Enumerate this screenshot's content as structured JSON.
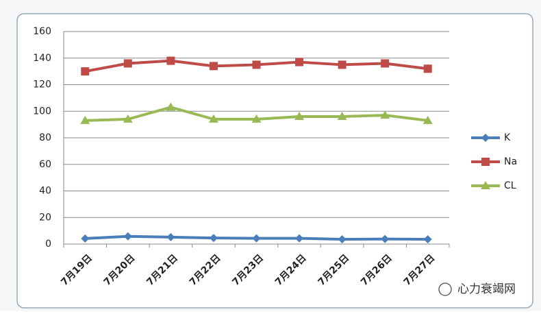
{
  "chart_data": {
    "type": "line",
    "categories": [
      "7月19日",
      "7月20日",
      "7月21日",
      "7月22日",
      "7月23日",
      "7月24日",
      "7月25日",
      "7月26日",
      "7月27日"
    ],
    "series": [
      {
        "name": "K",
        "color": "#4a7ebb",
        "marker": "diamond",
        "values": [
          4.2,
          5.8,
          5.2,
          4.6,
          4.3,
          4.3,
          3.6,
          3.8,
          3.6
        ]
      },
      {
        "name": "Na",
        "color": "#be4b48",
        "marker": "square",
        "values": [
          130,
          136,
          138,
          134,
          135,
          137,
          135,
          136,
          132
        ]
      },
      {
        "name": "CL",
        "color": "#98b954",
        "marker": "triangle",
        "values": [
          93,
          94,
          103,
          94,
          94,
          96,
          96,
          97,
          93
        ]
      }
    ],
    "ylim": [
      0,
      160
    ],
    "yticks": [
      0,
      20,
      40,
      60,
      80,
      100,
      120,
      140,
      160
    ],
    "grid": true,
    "legend": "right"
  },
  "watermark": "心力衰竭网"
}
